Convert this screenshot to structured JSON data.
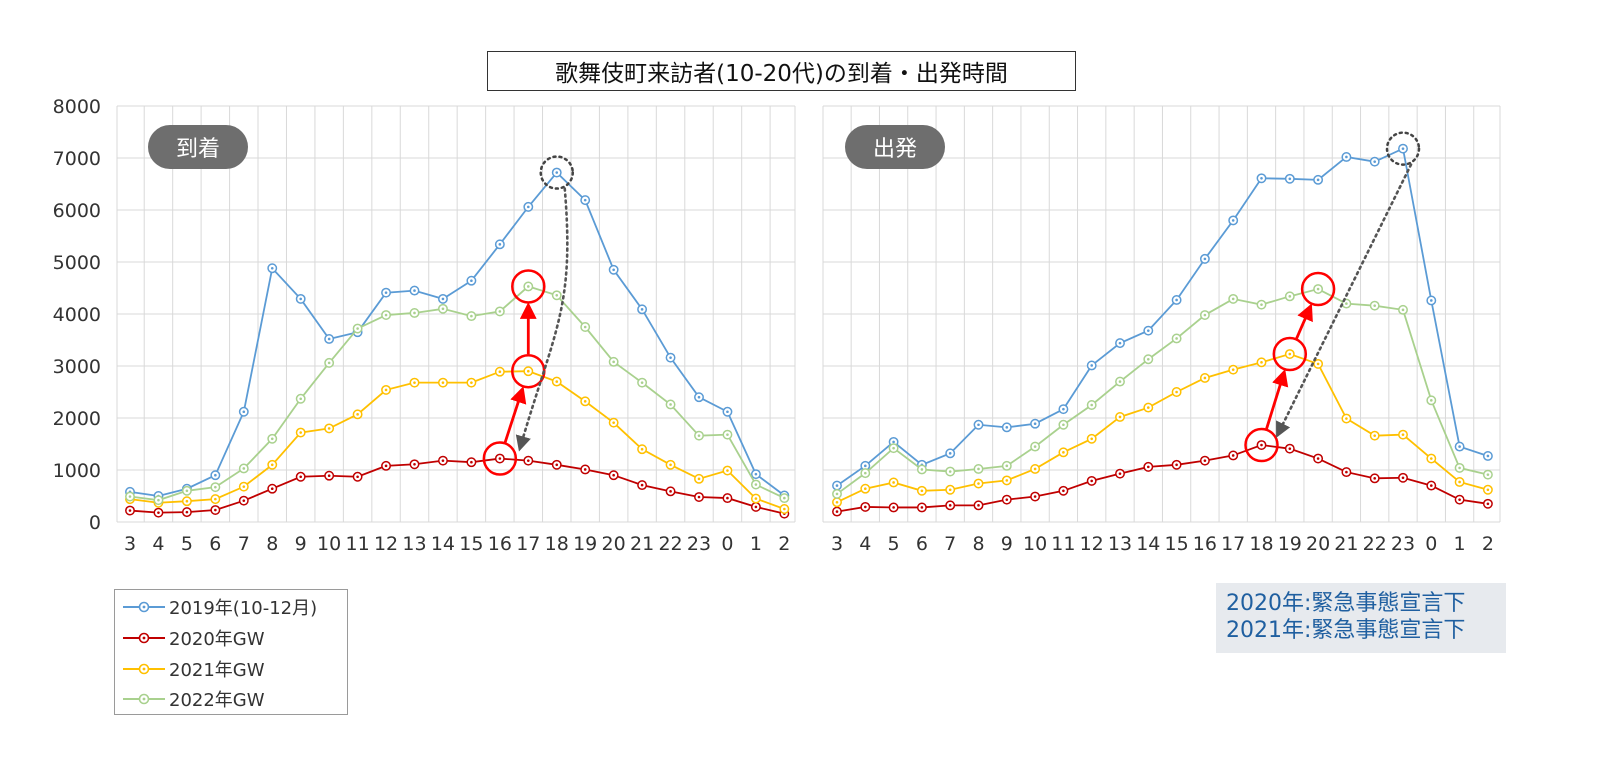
{
  "title": "歌舞伎町来訪者(10-20代)の到着・出発時間",
  "panels": {
    "arrival_label": "到着",
    "departure_label": "出発"
  },
  "legend": [
    {
      "name": "2019年(10-12月)",
      "color": "#5b9bd5"
    },
    {
      "name": "2020年GW",
      "color": "#c00000"
    },
    {
      "name": "2021年GW",
      "color": "#ffc000"
    },
    {
      "name": "2022年GW",
      "color": "#a9d18e"
    }
  ],
  "notes": [
    "2020年:緊急事態宣言下",
    "2021年:緊急事態宣言下"
  ],
  "chart_data": [
    {
      "type": "line",
      "title": "到着",
      "categories": [
        "3",
        "4",
        "5",
        "6",
        "7",
        "8",
        "9",
        "10",
        "11",
        "12",
        "13",
        "14",
        "15",
        "16",
        "17",
        "18",
        "19",
        "20",
        "21",
        "22",
        "23",
        "0",
        "1",
        "2"
      ],
      "ylim": [
        0,
        8000
      ],
      "yticks": [
        "0",
        "1000",
        "2000",
        "3000",
        "4000",
        "5000",
        "6000",
        "7000",
        "8000"
      ],
      "grid": true,
      "series": [
        {
          "name": "2019年(10-12月)",
          "values": [
            580,
            500,
            640,
            900,
            2120,
            4880,
            4290,
            3520,
            3650,
            4410,
            4450,
            4290,
            4640,
            5340,
            6060,
            6720,
            6190,
            4850,
            4090,
            3160,
            2400,
            2120,
            920,
            510
          ]
        },
        {
          "name": "2020年GW",
          "values": [
            220,
            180,
            190,
            230,
            410,
            640,
            870,
            890,
            870,
            1080,
            1110,
            1180,
            1150,
            1220,
            1180,
            1100,
            1010,
            900,
            710,
            590,
            480,
            460,
            290,
            160
          ]
        },
        {
          "name": "2021年GW",
          "values": [
            440,
            370,
            400,
            440,
            680,
            1100,
            1720,
            1800,
            2070,
            2540,
            2680,
            2680,
            2680,
            2890,
            2900,
            2700,
            2320,
            1910,
            1400,
            1100,
            830,
            990,
            450,
            250
          ]
        },
        {
          "name": "2022年GW",
          "values": [
            490,
            420,
            600,
            670,
            1030,
            1600,
            2370,
            3060,
            3720,
            3980,
            4020,
            4100,
            3960,
            4050,
            4530,
            4360,
            3750,
            3080,
            2680,
            2260,
            1660,
            1680,
            720,
            460
          ]
        }
      ]
    },
    {
      "type": "line",
      "title": "出発",
      "categories": [
        "3",
        "4",
        "5",
        "6",
        "7",
        "8",
        "9",
        "10",
        "11",
        "12",
        "13",
        "14",
        "15",
        "16",
        "17",
        "18",
        "19",
        "20",
        "21",
        "22",
        "23",
        "0",
        "1",
        "2"
      ],
      "ylim": [
        0,
        8000
      ],
      "grid": true,
      "series": [
        {
          "name": "2019年(10-12月)",
          "values": [
            700,
            1080,
            1540,
            1100,
            1320,
            1870,
            1820,
            1890,
            2170,
            3010,
            3440,
            3680,
            4270,
            5060,
            5800,
            6610,
            6600,
            6580,
            7020,
            6930,
            7180,
            4260,
            1450,
            1270
          ]
        },
        {
          "name": "2020年GW",
          "values": [
            200,
            290,
            280,
            280,
            320,
            320,
            430,
            490,
            600,
            790,
            930,
            1060,
            1100,
            1180,
            1280,
            1480,
            1410,
            1220,
            960,
            840,
            850,
            700,
            430,
            350
          ]
        },
        {
          "name": "2021年GW",
          "values": [
            380,
            640,
            760,
            600,
            620,
            740,
            800,
            1020,
            1340,
            1600,
            2020,
            2200,
            2500,
            2770,
            2930,
            3070,
            3230,
            3040,
            1990,
            1660,
            1680,
            1220,
            770,
            620
          ]
        },
        {
          "name": "2022年GW",
          "values": [
            540,
            940,
            1420,
            1010,
            970,
            1020,
            1080,
            1450,
            1870,
            2250,
            2700,
            3130,
            3530,
            3980,
            4290,
            4180,
            4340,
            4480,
            4200,
            4160,
            4080,
            2340,
            1040,
            910
          ]
        }
      ]
    }
  ]
}
